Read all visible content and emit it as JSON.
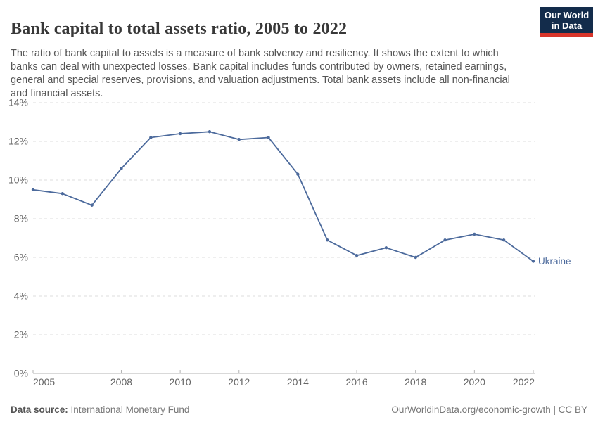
{
  "header": {
    "title": "Bank capital to total assets ratio, 2005 to 2022",
    "subtitle": "The ratio of bank capital to assets is a measure of bank solvency and resiliency. It shows the extent to which banks can deal with unexpected losses. Bank capital includes funds contributed by owners, retained earnings, general and special reserves, provisions, and valuation adjustments. Total bank assets include all non-financial and financial assets.",
    "logo": {
      "line1": "Our World",
      "line2": "in Data",
      "bg_color": "#132C4B",
      "accent_color": "#D8352B"
    }
  },
  "chart_data": {
    "type": "line",
    "title": "Bank capital to total assets ratio, 2005 to 2022",
    "x": [
      2005,
      2006,
      2007,
      2008,
      2009,
      2010,
      2011,
      2012,
      2013,
      2014,
      2015,
      2016,
      2017,
      2018,
      2019,
      2020,
      2021,
      2022
    ],
    "series": [
      {
        "name": "Ukraine",
        "color": "#4C6A9C",
        "values": [
          9.5,
          9.3,
          8.7,
          10.6,
          12.2,
          12.4,
          12.5,
          12.1,
          12.2,
          10.3,
          6.9,
          6.1,
          6.5,
          6.0,
          6.9,
          7.2,
          6.9,
          5.8
        ]
      }
    ],
    "xlim": [
      2005,
      2022
    ],
    "ylim": [
      0,
      14
    ],
    "x_tick_labels": [
      2005,
      2008,
      2010,
      2012,
      2014,
      2016,
      2018,
      2020,
      2022
    ],
    "y_ticks": [
      0,
      2,
      4,
      6,
      8,
      10,
      12,
      14
    ],
    "y_tick_suffix": "%",
    "grid": "horizontal-dashed",
    "legend_position": "end-of-line-label",
    "colors": {
      "gridline": "#dcdcdc",
      "axis": "#b3b3b3",
      "tick_label": "#666666"
    }
  },
  "footer": {
    "datasource_label": "Data source:",
    "datasource_value": "International Monetary Fund",
    "credit": "OurWorldinData.org/economic-growth | CC BY"
  }
}
